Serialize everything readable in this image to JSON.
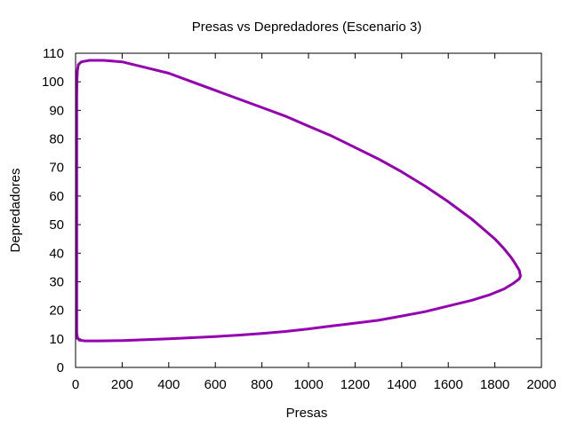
{
  "chart_data": {
    "type": "line",
    "title": "Presas vs Depredadores (Escenario 3)",
    "xlabel": "Presas",
    "ylabel": "Depredadores",
    "xlim": [
      0,
      2000
    ],
    "ylim": [
      0,
      110
    ],
    "xticks": [
      0,
      200,
      400,
      600,
      800,
      1000,
      1200,
      1400,
      1600,
      1800,
      2000
    ],
    "yticks": [
      0,
      10,
      20,
      30,
      40,
      50,
      60,
      70,
      80,
      90,
      100,
      110
    ],
    "grid": false,
    "legend": "none",
    "series": [
      {
        "color": "#9400b0",
        "x": [
          12,
          25,
          60,
          120,
          200,
          300,
          400,
          500,
          600,
          700,
          800,
          900,
          1000,
          1100,
          1200,
          1300,
          1400,
          1500,
          1600,
          1650,
          1700,
          1750,
          1800,
          1840,
          1870,
          1890,
          1905,
          1910,
          1905,
          1880,
          1840,
          1780,
          1700,
          1600,
          1500,
          1400,
          1300,
          1200,
          1100,
          1000,
          900,
          800,
          700,
          600,
          500,
          400,
          300,
          200,
          100,
          40,
          15,
          8,
          5,
          5,
          5,
          5,
          5,
          5,
          6,
          8,
          12
        ],
        "y": [
          106,
          107,
          107.5,
          107.5,
          107,
          105,
          103,
          100,
          97,
          94,
          91,
          88,
          84.5,
          81,
          77,
          73,
          68.5,
          63.5,
          58,
          55,
          52,
          48.5,
          45,
          41.5,
          38.5,
          36,
          34,
          32,
          31,
          29.5,
          27.5,
          25.5,
          23.5,
          21.5,
          19.5,
          18,
          16.5,
          15.5,
          14.5,
          13.5,
          12.6,
          11.9,
          11.3,
          10.8,
          10.4,
          10,
          9.7,
          9.4,
          9.3,
          9.3,
          9.6,
          10.5,
          12,
          20,
          40,
          60,
          80,
          95,
          101,
          104,
          106
        ]
      }
    ]
  }
}
